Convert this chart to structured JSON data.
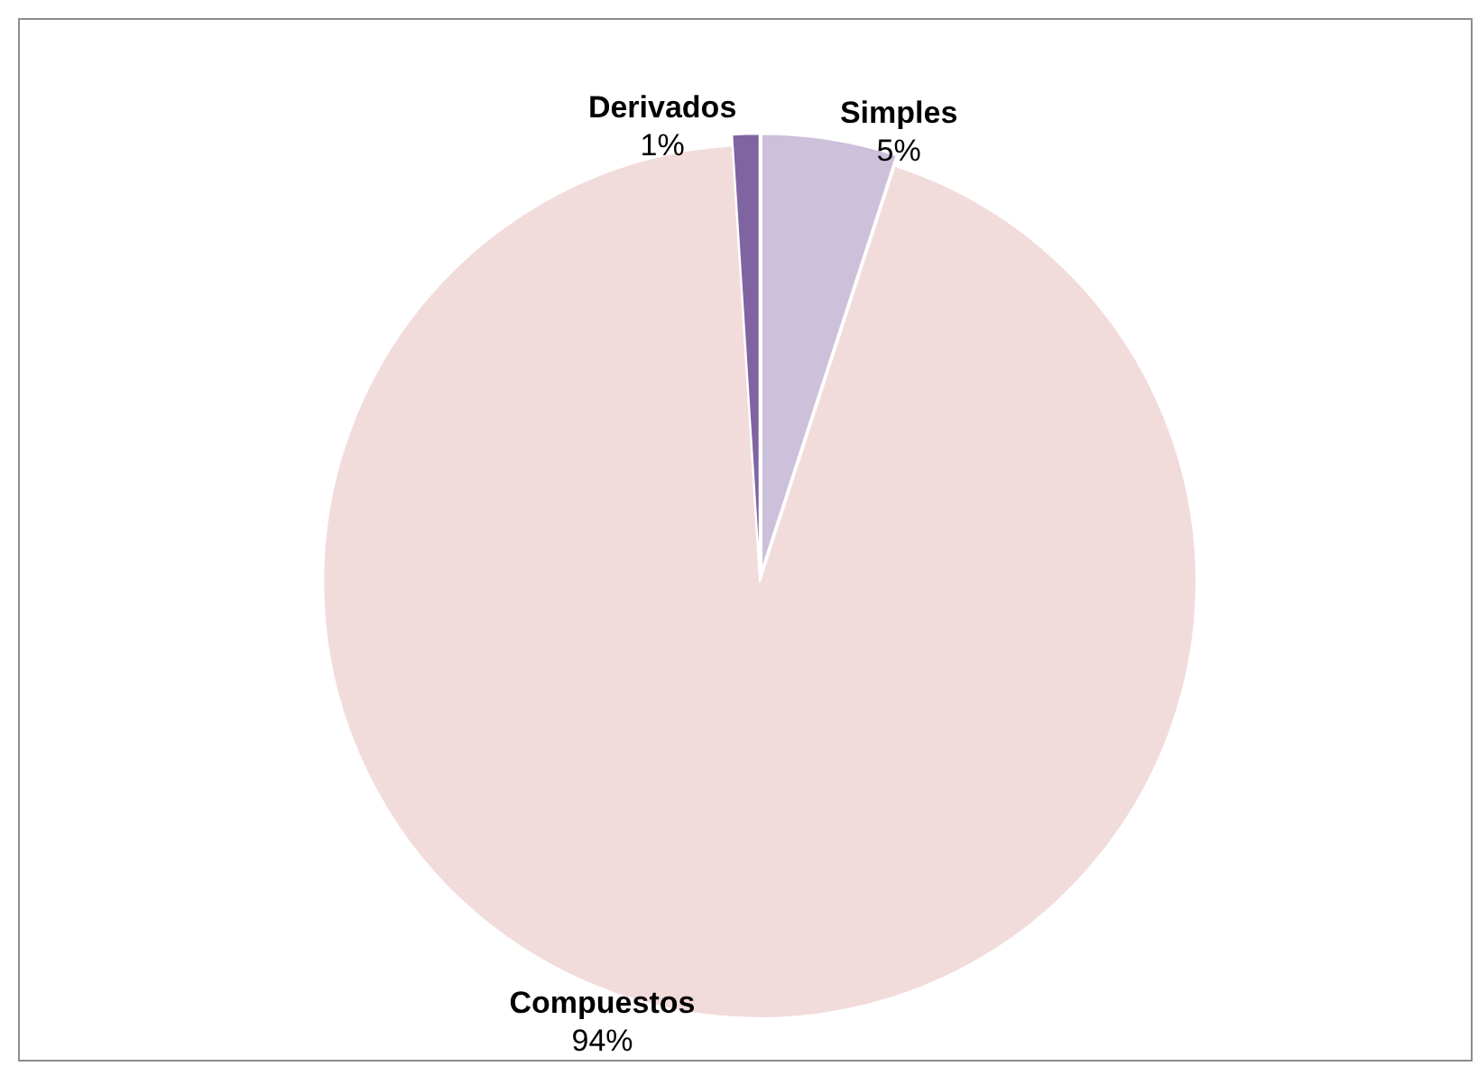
{
  "chart_data": {
    "type": "pie",
    "categories": [
      "Simples",
      "Compuestos",
      "Derivados"
    ],
    "values": [
      5,
      94,
      1
    ],
    "colors": [
      "#ccc0da",
      "#f2dcdb",
      "#8064a2"
    ],
    "value_labels": [
      "5%",
      "94%",
      "1%"
    ]
  }
}
